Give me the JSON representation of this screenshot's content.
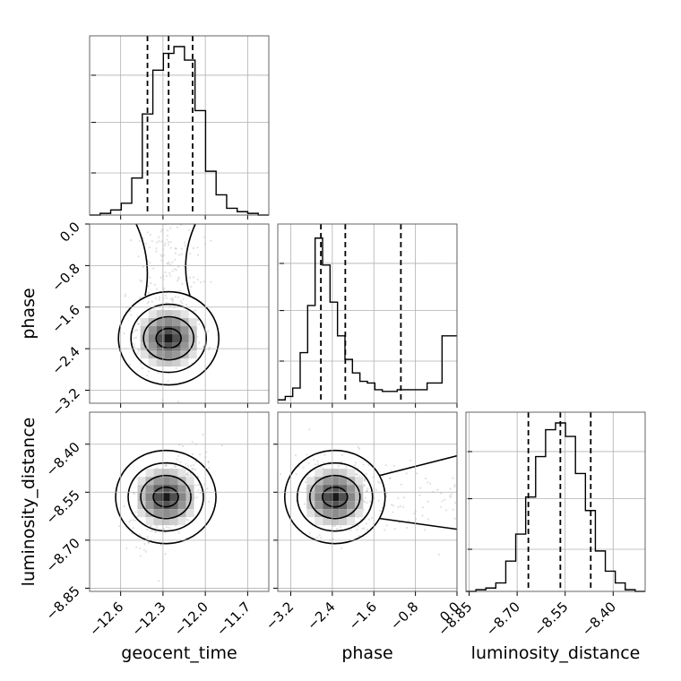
{
  "chart_data": {
    "type": "corner",
    "parameters": [
      "geocent_time",
      "phase",
      "luminosity_distance"
    ],
    "ranges": {
      "geocent_time": [
        -12.82,
        -11.55
      ],
      "phase": [
        -3.45,
        0.0
      ],
      "luminosity_distance": [
        -8.86,
        -8.3
      ]
    },
    "ticks": {
      "geocent_time": [
        -12.6,
        -12.3,
        -12.0,
        -11.7
      ],
      "phase": [
        -3.2,
        -2.4,
        -1.6,
        -0.8,
        0.0
      ],
      "luminosity_distance": [
        -8.85,
        -8.7,
        -8.55,
        -8.4
      ]
    },
    "tick_labels": {
      "geocent_time": [
        "−12.6",
        "−12.3",
        "−12.0",
        "−11.7"
      ],
      "phase": [
        "−3.2",
        "−2.4",
        "−1.6",
        "−0.8",
        "0.0"
      ],
      "luminosity_distance": [
        "−8.85",
        "−8.70",
        "−8.55",
        "−8.40"
      ]
    },
    "quantiles": {
      "geocent_time": [
        -12.41,
        -12.26,
        -12.09
      ],
      "phase": [
        -2.62,
        -2.15,
        -1.08
      ],
      "luminosity_distance": [
        -8.665,
        -8.565,
        -8.47
      ]
    },
    "histograms": {
      "geocent_time": [
        0.0,
        0.01,
        0.03,
        0.07,
        0.22,
        0.6,
        0.86,
        0.96,
        1.0,
        0.92,
        0.62,
        0.26,
        0.12,
        0.04,
        0.02,
        0.01,
        0.0
      ],
      "phase": [
        0.02,
        0.04,
        0.09,
        0.3,
        0.58,
        0.98,
        0.82,
        0.6,
        0.4,
        0.26,
        0.18,
        0.13,
        0.12,
        0.08,
        0.07,
        0.07,
        0.08,
        0.08,
        0.08,
        0.08,
        0.12,
        0.12,
        0.4,
        0.4
      ],
      "luminosity_distance": [
        0.0,
        0.01,
        0.02,
        0.05,
        0.18,
        0.34,
        0.56,
        0.8,
        0.96,
        1.0,
        0.92,
        0.7,
        0.48,
        0.24,
        0.12,
        0.05,
        0.01,
        0.0
      ]
    },
    "grid": true
  }
}
